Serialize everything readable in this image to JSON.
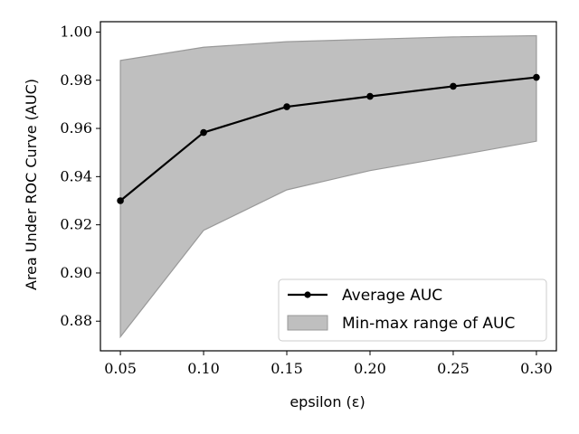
{
  "chart_data": {
    "type": "line",
    "x": [
      0.05,
      0.1,
      0.15,
      0.2,
      0.25,
      0.3
    ],
    "series": [
      {
        "name": "Average AUC",
        "kind": "line",
        "values": [
          0.93,
          0.9583,
          0.969,
          0.9733,
          0.9775,
          0.9812
        ],
        "color": "#000000"
      },
      {
        "name": "Min-max range of AUC",
        "kind": "band",
        "min": [
          0.8735,
          0.9177,
          0.9345,
          0.9425,
          0.9485,
          0.9547
        ],
        "max": [
          0.9882,
          0.9937,
          0.996,
          0.997,
          0.998,
          0.9985
        ],
        "color": "#bfbfbf",
        "edge_color": "#999999"
      }
    ],
    "xlabel": "epsilon (ε)",
    "ylabel": "Area Under ROC Curve (AUC)",
    "xlim": [
      0.038,
      0.312
    ],
    "ylim": [
      0.8677,
      1.0043
    ],
    "xticks": [
      0.05,
      0.1,
      0.15,
      0.2,
      0.25,
      0.3
    ],
    "xtick_labels": [
      "0.05",
      "0.10",
      "0.15",
      "0.20",
      "0.25",
      "0.30"
    ],
    "yticks": [
      0.88,
      0.9,
      0.92,
      0.94,
      0.96,
      0.98,
      1.0
    ],
    "ytick_labels": [
      "0.88",
      "0.90",
      "0.92",
      "0.94",
      "0.96",
      "0.98",
      "1.00"
    ],
    "legend_position": "lower-right",
    "legend": [
      "Average AUC",
      "Min-max range of AUC"
    ],
    "grid": false
  }
}
